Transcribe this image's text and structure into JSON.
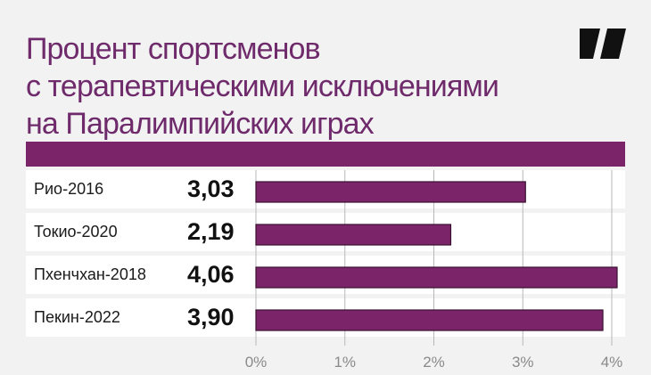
{
  "title_lines": [
    "Процент спортсменов",
    "с терапевтическими исключениями",
    "на Паралимпийских играх"
  ],
  "colors": {
    "accent": "#7b2469",
    "title": "#6e2a6a",
    "background": "#f2f2f2",
    "panel": "#ffffff",
    "bar_border": "#3a1230",
    "gridline": "#b8b8b8"
  },
  "logo_icon": "brand-logo-icon",
  "chart_data": {
    "type": "bar",
    "orientation": "horizontal",
    "categories": [
      "Рио-2016",
      "Токио-2020",
      "Пхенчхан-2018",
      "Пекин-2022"
    ],
    "values": [
      3.03,
      2.19,
      4.06,
      3.9
    ],
    "value_labels": [
      "3,03",
      "2,19",
      "4,06",
      "3,90"
    ],
    "x_ticks": [
      0,
      1,
      2,
      3,
      4
    ],
    "x_tick_labels": [
      "0%",
      "1%",
      "2%",
      "3%",
      "4%"
    ],
    "xlim": [
      0,
      4.12
    ],
    "grid": true
  }
}
